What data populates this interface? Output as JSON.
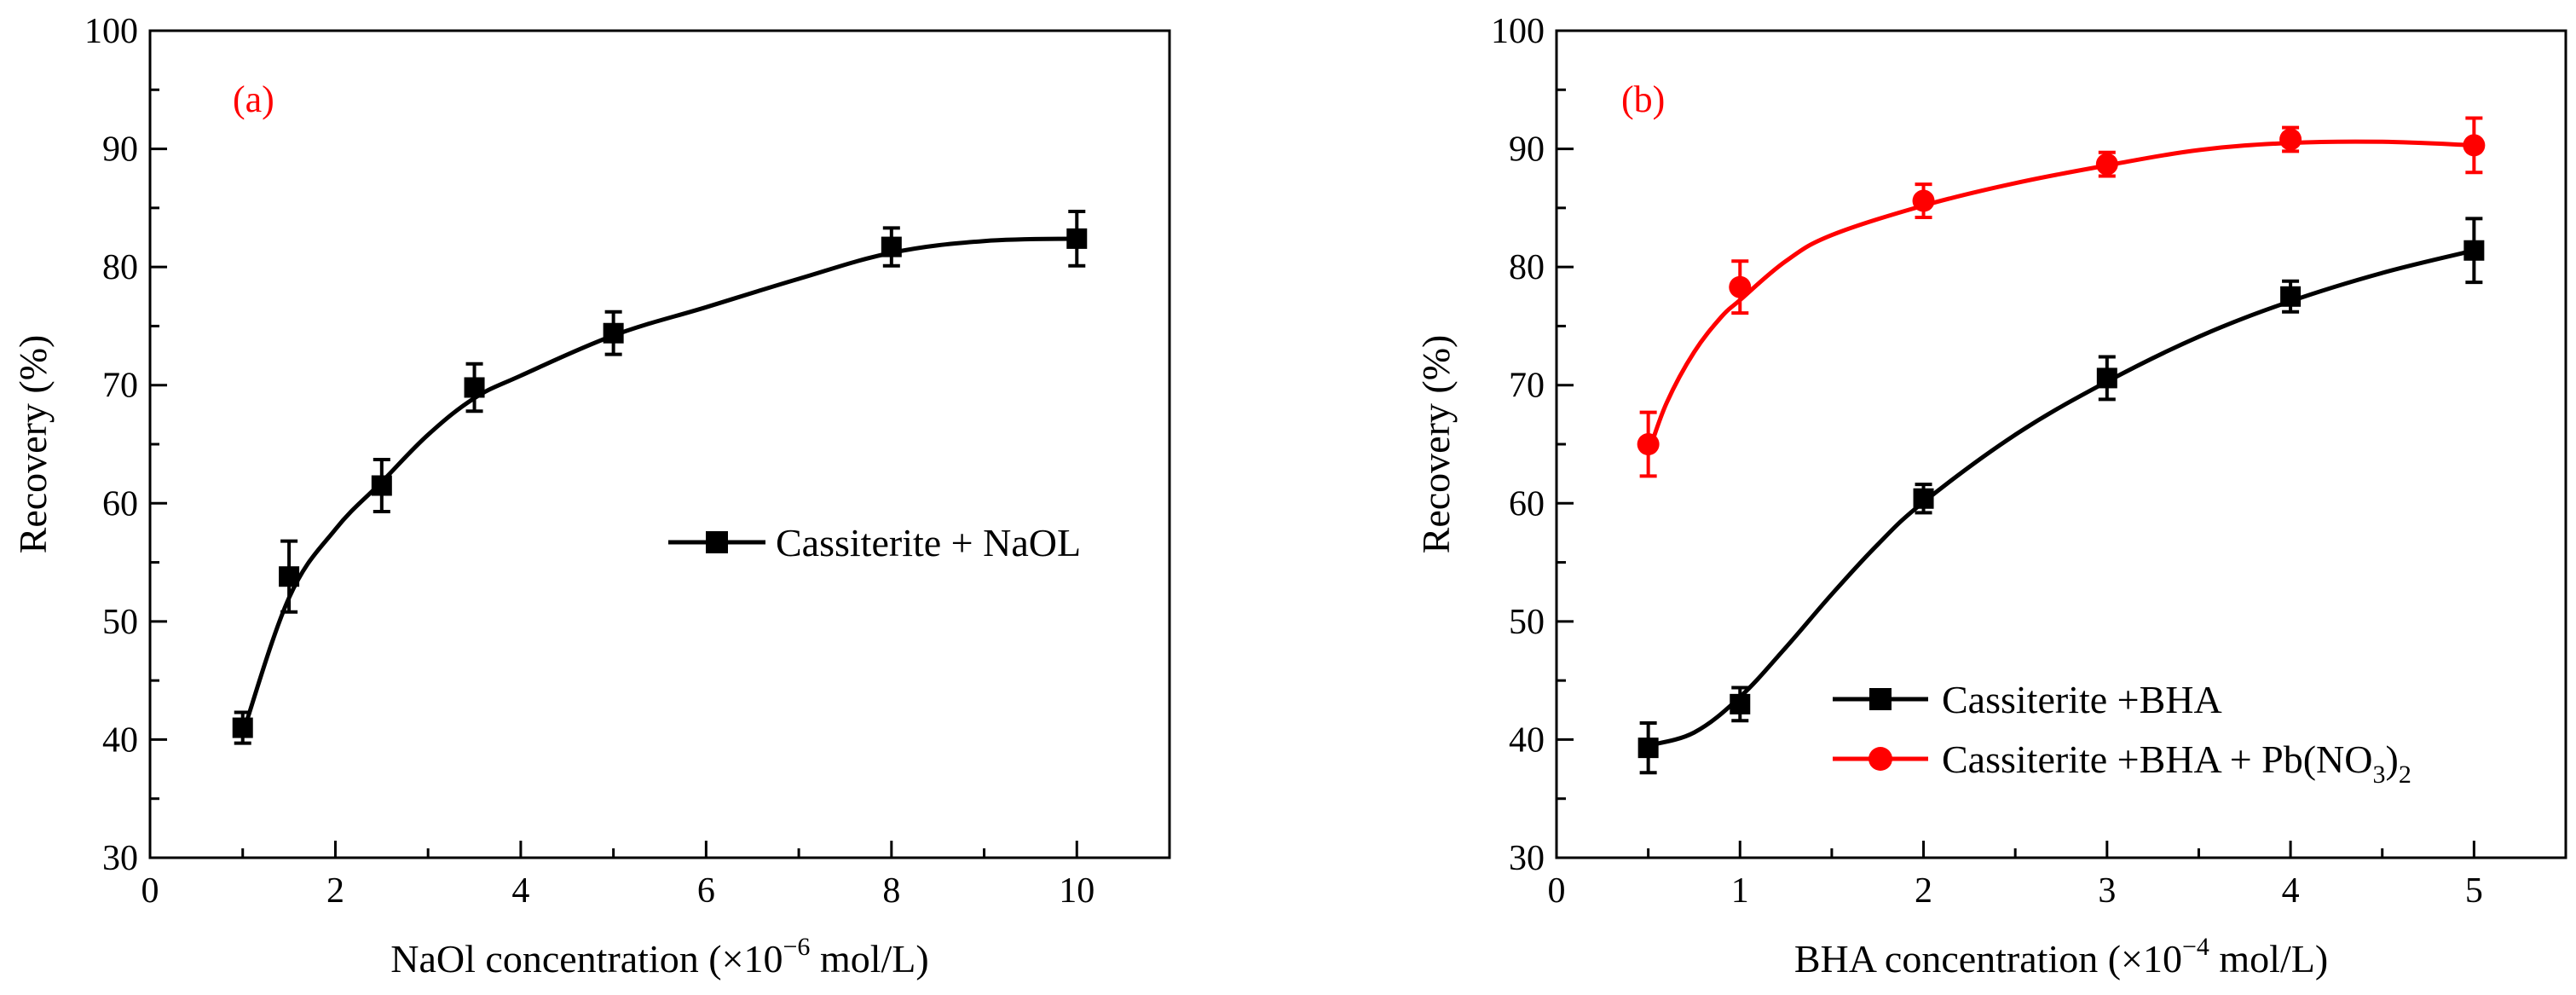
{
  "chart_data": [
    {
      "type": "line",
      "panel_label": "(a)",
      "xlabel_prefix": "NaOl concentration (×10",
      "xlabel_exponent": "−6",
      "xlabel_suffix": " mol/L)",
      "ylabel": "Recovery (%)",
      "xlim": [
        0,
        11
      ],
      "ylim": [
        30,
        100
      ],
      "xticks": [
        0,
        2,
        4,
        6,
        8,
        10
      ],
      "yticks": [
        30,
        40,
        50,
        60,
        70,
        80,
        90,
        100
      ],
      "x_minor_step": 1,
      "y_minor_step": 5,
      "legend_position": "center-right",
      "series": [
        {
          "name": "Cassiterite + NaOL",
          "marker": "square",
          "color": "#000000",
          "x": [
            1,
            1.5,
            2.5,
            3.5,
            5,
            8,
            10
          ],
          "y": [
            41.0,
            53.8,
            61.5,
            69.8,
            74.4,
            81.7,
            82.4
          ],
          "error": [
            1.3,
            3.0,
            2.2,
            2.0,
            1.8,
            1.6,
            2.3
          ],
          "fit_x": [
            1,
            1.5,
            2,
            2.5,
            3,
            3.5,
            4,
            5,
            6,
            7,
            8,
            9,
            10
          ],
          "fit_y": [
            40.5,
            52.0,
            57.8,
            61.8,
            65.8,
            68.9,
            70.8,
            74.2,
            76.6,
            79.0,
            81.2,
            82.2,
            82.4
          ]
        }
      ]
    },
    {
      "type": "line",
      "panel_label": "(b)",
      "xlabel_prefix": "BHA concentration (×10",
      "xlabel_exponent": "−4",
      "xlabel_suffix": " mol/L)",
      "ylabel": "Recovery (%)",
      "xlim": [
        0,
        5.5
      ],
      "ylim": [
        30,
        100
      ],
      "xticks": [
        0,
        1,
        2,
        3,
        4,
        5
      ],
      "yticks": [
        30,
        40,
        50,
        60,
        70,
        80,
        90,
        100
      ],
      "x_minor_step": 0.5,
      "y_minor_step": 5,
      "legend_position": "bottom-right",
      "series": [
        {
          "name": "Cassiterite +BHA",
          "marker": "square",
          "color": "#000000",
          "x": [
            0.5,
            1,
            2,
            3,
            4,
            5
          ],
          "y": [
            39.3,
            43.0,
            60.4,
            70.6,
            77.5,
            81.4
          ],
          "error": [
            2.1,
            1.4,
            1.2,
            1.8,
            1.3,
            2.7
          ],
          "fit_x": [
            0.5,
            0.75,
            1,
            1.25,
            1.5,
            1.75,
            2,
            2.5,
            3,
            3.5,
            4,
            4.5,
            5
          ],
          "fit_y": [
            39.5,
            40.6,
            43.6,
            47.8,
            52.3,
            56.5,
            60.1,
            65.8,
            70.3,
            74.1,
            77.1,
            79.5,
            81.4
          ]
        },
        {
          "name": "Cassiterite +BHA + Pb(NO",
          "name_sub1": "3",
          "name_mid": ")",
          "name_sub2": "2",
          "marker": "circle",
          "color": "#ff0000",
          "x": [
            0.5,
            1,
            2,
            3,
            4,
            5
          ],
          "y": [
            65.0,
            78.3,
            85.6,
            88.7,
            90.8,
            90.3
          ],
          "error": [
            2.7,
            2.2,
            1.4,
            1.0,
            1.0,
            2.3
          ],
          "fit_x": [
            0.5,
            0.6,
            0.75,
            0.9,
            1,
            1.25,
            1.5,
            2,
            2.5,
            3,
            3.5,
            4,
            4.5,
            5
          ],
          "fit_y": [
            64.2,
            68.5,
            72.8,
            75.8,
            77.2,
            80.5,
            82.7,
            85.2,
            87.1,
            88.6,
            89.9,
            90.5,
            90.6,
            90.3
          ]
        }
      ]
    }
  ]
}
